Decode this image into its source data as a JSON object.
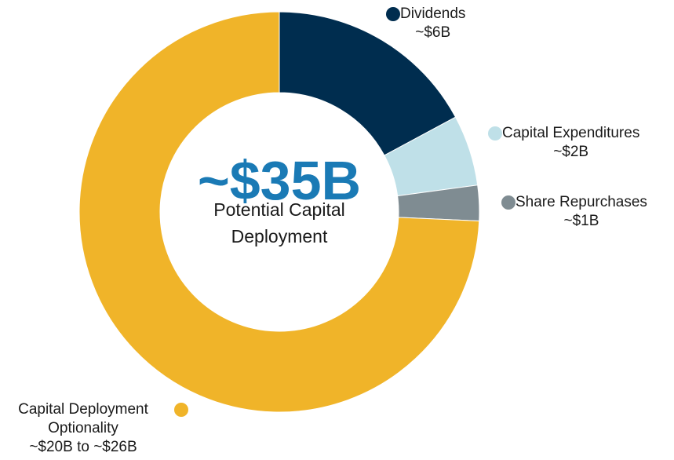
{
  "chart_data": {
    "type": "donut",
    "center_label": "~$35B",
    "center_sublabel": "Potential Capital Deployment",
    "categories": [
      "Dividends",
      "Capital Expenditures",
      "Share Repurchases",
      "Capital Deployment Optionality"
    ],
    "values": [
      6,
      2,
      1,
      26
    ],
    "value_labels": [
      "~$6B",
      "~$2B",
      "~$1B",
      "~$20B to ~$26B"
    ],
    "colors": [
      "#002d4f",
      "#bfe0e8",
      "#7f8c92",
      "#f0b429"
    ]
  }
}
